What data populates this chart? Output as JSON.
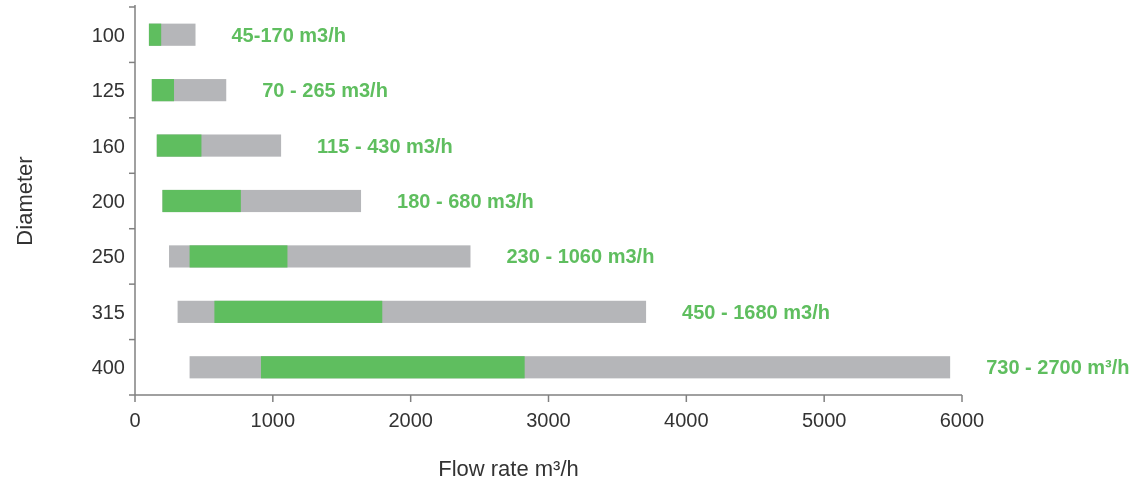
{
  "chart_data": {
    "type": "bar",
    "orientation": "horizontal",
    "xlabel": "Flow rate m³/h",
    "ylabel": "Diameter",
    "categories": [
      "100",
      "125",
      "160",
      "200",
      "250",
      "315",
      "400"
    ],
    "xlim": [
      0,
      6000
    ],
    "xticks": [
      0,
      1000,
      2000,
      3000,
      4000,
      5000,
      6000
    ],
    "series": [
      {
        "color": "#b5b6b9",
        "base": [
          101,
          122,
          158,
          199,
          247,
          309,
          396
        ],
        "values": [
          338,
          540,
          902,
          1441,
          2187,
          3399,
          5518
        ]
      },
      {
        "color": "#5fbe5f",
        "base": [
          101,
          122,
          158,
          199,
          396,
          576,
          914
        ],
        "values": [
          89,
          161,
          324,
          569,
          710,
          1218,
          1913
        ]
      }
    ],
    "annotations": [
      {
        "text": "45-170 m3/h",
        "x": 439,
        "y": "100"
      },
      {
        "text": "70 - 265 m3/h",
        "x": 662,
        "y": "125"
      },
      {
        "text": "115 - 430 m3/h",
        "x": 1060,
        "y": "160"
      },
      {
        "text": "180 - 680 m3/h",
        "x": 1640,
        "y": "200"
      },
      {
        "text": "230 - 1060 m3/h",
        "x": 2434,
        "y": "250"
      },
      {
        "text": "450 - 1680 m3/h",
        "x": 3708,
        "y": "315"
      },
      {
        "text": "730 - 2700 m³/h",
        "x": 5914,
        "y": "400"
      }
    ]
  }
}
